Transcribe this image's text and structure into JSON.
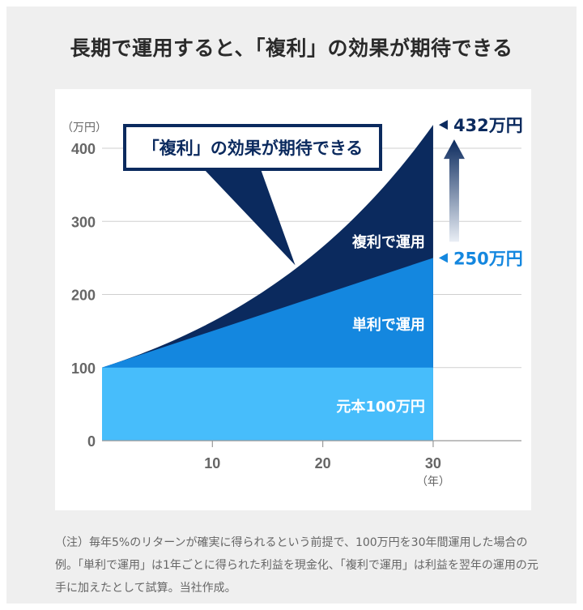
{
  "title": "長期で運用すると、「複利」の効果が期待できる",
  "note": "（注）毎年5%のリターンが確実に得られるという前提で、100万円を30年間運用した場合の例。「単利で運用」は1年ごとに得られた利益を現金化、「複利で運用」は利益を翌年の運用の元手に加えたとして試算。当社作成。",
  "colors": {
    "principal": "#47bdfb",
    "simple": "#1487df",
    "compound": "#0b2a5e",
    "grid": "#cfcfcf",
    "axis_text": "#666666",
    "arrow_top": "#0b2a5e",
    "arrow_bottom": "#e9eef5"
  },
  "chart_data": {
    "type": "area",
    "unit_label": "（万円）",
    "x_unit_label": "（年）",
    "xlim": [
      0,
      38
    ],
    "ylim": [
      0,
      400
    ],
    "y_ticks": [
      0,
      100,
      200,
      300,
      400
    ],
    "x_ticks": [
      10,
      20,
      30
    ],
    "series": [
      {
        "name": "元本100万円",
        "x": [
          0,
          30
        ],
        "values": [
          100,
          100
        ]
      },
      {
        "name": "単利で運用",
        "x": [
          0,
          30
        ],
        "values": [
          100,
          250
        ]
      },
      {
        "name": "複利で運用",
        "x": [
          0,
          5,
          10,
          15,
          20,
          25,
          30
        ],
        "values": [
          100,
          128,
          163,
          208,
          265,
          339,
          432
        ]
      }
    ],
    "end_labels": [
      {
        "text": "432万円",
        "value": 432
      },
      {
        "text": "250万円",
        "value": 250
      }
    ],
    "callout": "「複利」の効果が期待できる"
  }
}
